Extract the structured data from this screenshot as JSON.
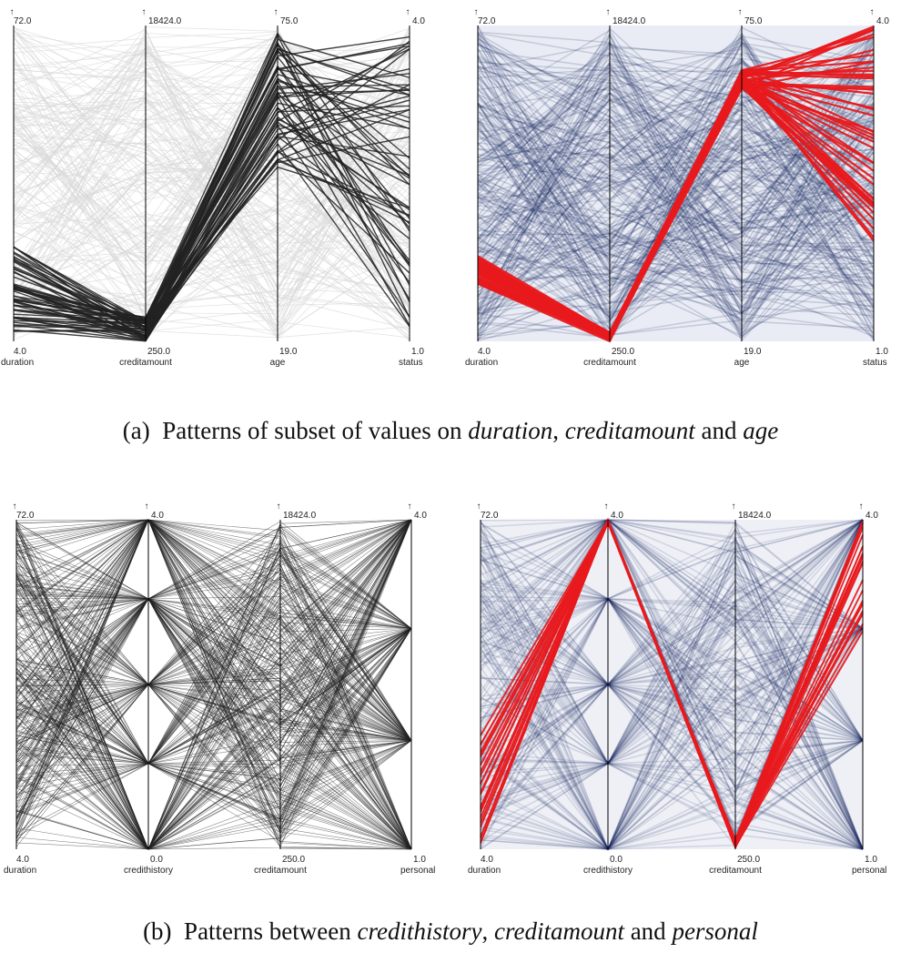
{
  "figure": {
    "caption_a": {
      "label": "(a)",
      "text": "Patterns of subset of values on",
      "terms": [
        "duration",
        "creditamount",
        "age"
      ],
      "separator": ", ",
      "conjunction": " and "
    },
    "caption_b": {
      "label": "(b)",
      "text": "Patterns between",
      "terms": [
        "credithistory",
        "creditamount",
        "personal"
      ],
      "separator": ", ",
      "conjunction": " and "
    }
  },
  "panels": [
    {
      "id": "a-left",
      "style": "gray-highlight",
      "axes": [
        {
          "name": "duration",
          "max": "72.0",
          "min": "4.0"
        },
        {
          "name": "creditamount",
          "max": "18424.0",
          "min": "250.0"
        },
        {
          "name": "age",
          "max": "75.0",
          "min": "19.0"
        },
        {
          "name": "status",
          "max": "4.0",
          "min": "1.0"
        }
      ]
    },
    {
      "id": "a-right",
      "style": "density-red",
      "axes": [
        {
          "name": "duration",
          "max": "72.0",
          "min": "4.0"
        },
        {
          "name": "creditamount",
          "max": "18424.0",
          "min": "250.0"
        },
        {
          "name": "age",
          "max": "75.0",
          "min": "19.0"
        },
        {
          "name": "status",
          "max": "4.0",
          "min": "1.0"
        }
      ]
    },
    {
      "id": "b-left",
      "style": "dense-black",
      "axes": [
        {
          "name": "duration",
          "max": "72.0",
          "min": "4.0"
        },
        {
          "name": "credithistory",
          "max": "4.0",
          "min": "0.0"
        },
        {
          "name": "creditamount",
          "max": "18424.0",
          "min": "250.0"
        },
        {
          "name": "personal",
          "max": "4.0",
          "min": "1.0"
        }
      ]
    },
    {
      "id": "b-right",
      "style": "density-red",
      "axes": [
        {
          "name": "duration",
          "max": "72.0",
          "min": "4.0"
        },
        {
          "name": "credithistory",
          "max": "4.0",
          "min": "0.0"
        },
        {
          "name": "creditamount",
          "max": "18424.0",
          "min": "250.0"
        },
        {
          "name": "personal",
          "max": "4.0",
          "min": "1.0"
        }
      ]
    }
  ],
  "colors": {
    "highlight_red": "#e8191c",
    "density_blue": "#1a2a66",
    "context_gray": "#d8d8d8",
    "line_dark": "#222222",
    "axis": "#000000"
  }
}
